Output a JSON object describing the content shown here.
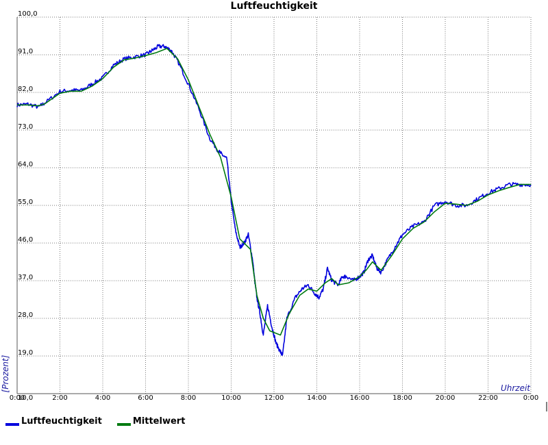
{
  "chart_data": {
    "type": "line",
    "title": "Luftfeuchtigkeit",
    "xlabel": "Uhrzeit",
    "ylabel": "[Prozent]",
    "xlim": [
      0,
      24
    ],
    "ylim": [
      10,
      100
    ],
    "x_ticks": [
      "0:00",
      "2:00",
      "4:00",
      "6:00",
      "8:00",
      "10:00",
      "12:00",
      "14:00",
      "16:00",
      "18:00",
      "20:00",
      "22:00",
      "0:00"
    ],
    "y_ticks": [
      "10,0",
      "19,0",
      "28,0",
      "37,0",
      "46,0",
      "55,0",
      "64,0",
      "73,0",
      "82,0",
      "91,0",
      "100,0"
    ],
    "grid": true,
    "legend": "bottom-left",
    "series": [
      {
        "name": "Luftfeuchtigkeit",
        "color": "#0000dd",
        "x": [
          0,
          0.5,
          1.0,
          1.3,
          2.0,
          2.5,
          3.0,
          3.5,
          4.0,
          4.5,
          5.0,
          5.5,
          6.0,
          6.3,
          6.6,
          6.9,
          7.2,
          7.5,
          8.0,
          8.5,
          9.0,
          9.4,
          9.6,
          9.8,
          10.0,
          10.2,
          10.4,
          10.6,
          10.8,
          11.0,
          11.1,
          11.2,
          11.35,
          11.5,
          11.7,
          11.9,
          12.1,
          12.3,
          12.4,
          12.6,
          13.0,
          13.3,
          13.6,
          13.9,
          14.1,
          14.3,
          14.5,
          14.7,
          15.0,
          15.2,
          15.4,
          15.7,
          16.0,
          16.2,
          16.4,
          16.6,
          16.8,
          17.0,
          17.3,
          17.7,
          18.0,
          18.5,
          19.0,
          19.5,
          20.0,
          20.5,
          21.0,
          21.5,
          22.0,
          22.5,
          23.0,
          23.5,
          24.0
        ],
        "y": [
          79,
          79.2,
          78.5,
          79.5,
          82.2,
          82.5,
          82.5,
          84,
          85.5,
          88.5,
          90,
          90.5,
          91,
          92,
          93,
          93,
          92,
          89.5,
          84,
          78,
          71,
          68,
          67,
          66,
          56,
          49,
          45,
          46,
          48,
          42,
          37,
          33,
          29,
          24,
          31,
          26,
          22,
          20,
          19,
          28,
          33,
          35,
          36,
          34,
          33,
          35,
          40,
          37,
          36,
          38,
          38,
          37,
          38,
          39,
          42,
          43,
          40,
          39,
          42,
          45.5,
          48,
          50,
          51,
          55,
          56,
          55,
          55,
          56.5,
          58,
          59,
          60,
          60,
          60
        ]
      },
      {
        "name": "Mittelwert",
        "color": "#007a10",
        "x": [
          0,
          0.5,
          1.0,
          1.3,
          2.0,
          2.5,
          3.0,
          3.5,
          4.0,
          4.5,
          5.0,
          5.5,
          6.0,
          6.5,
          7.0,
          7.5,
          8.0,
          8.5,
          9.0,
          9.5,
          10.0,
          10.4,
          10.9,
          11.2,
          11.5,
          11.8,
          12.3,
          12.7,
          13.2,
          13.6,
          14.0,
          14.4,
          14.7,
          15.0,
          15.5,
          16.0,
          16.3,
          16.6,
          17.0,
          17.5,
          18.0,
          18.5,
          19.0,
          19.5,
          20.0,
          20.5,
          21.0,
          21.5,
          22.0,
          22.5,
          23.0,
          23.5,
          24.0
        ],
        "y": [
          79,
          79,
          78.8,
          79.3,
          81.8,
          82.3,
          82.3,
          83.5,
          85.3,
          88,
          89.8,
          90.2,
          90.8,
          91.5,
          92.5,
          90,
          85,
          78.5,
          72,
          66.5,
          57,
          47,
          44.5,
          33.5,
          28,
          25,
          24,
          29,
          33.5,
          35,
          34.5,
          36.5,
          37.5,
          36,
          36.5,
          38,
          39.5,
          41.5,
          39.5,
          43,
          47,
          49.5,
          51,
          53.5,
          55.5,
          55.3,
          55,
          56,
          57.5,
          58.5,
          59.3,
          60,
          60
        ]
      }
    ]
  }
}
